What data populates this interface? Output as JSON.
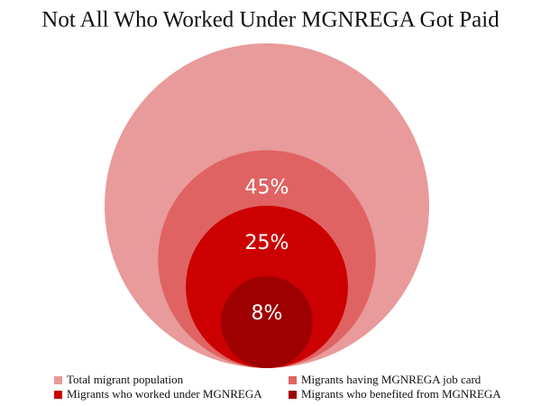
{
  "chart_data": {
    "type": "nested-circle",
    "title": "Not All Who Worked Under MGNREGA Got Paid",
    "categories": [
      "Total migrant population",
      "Migrants having MGNREGA job card",
      "Migrants who worked under MGNREGA",
      "Migrants who benefited from MGNREGA"
    ],
    "values": [
      100,
      45,
      25,
      8
    ],
    "value_labels": [
      null,
      "45%",
      "25%",
      "8%"
    ],
    "colors": [
      "#e99a9a",
      "#e06363",
      "#cc0000",
      "#9e0000"
    ]
  }
}
